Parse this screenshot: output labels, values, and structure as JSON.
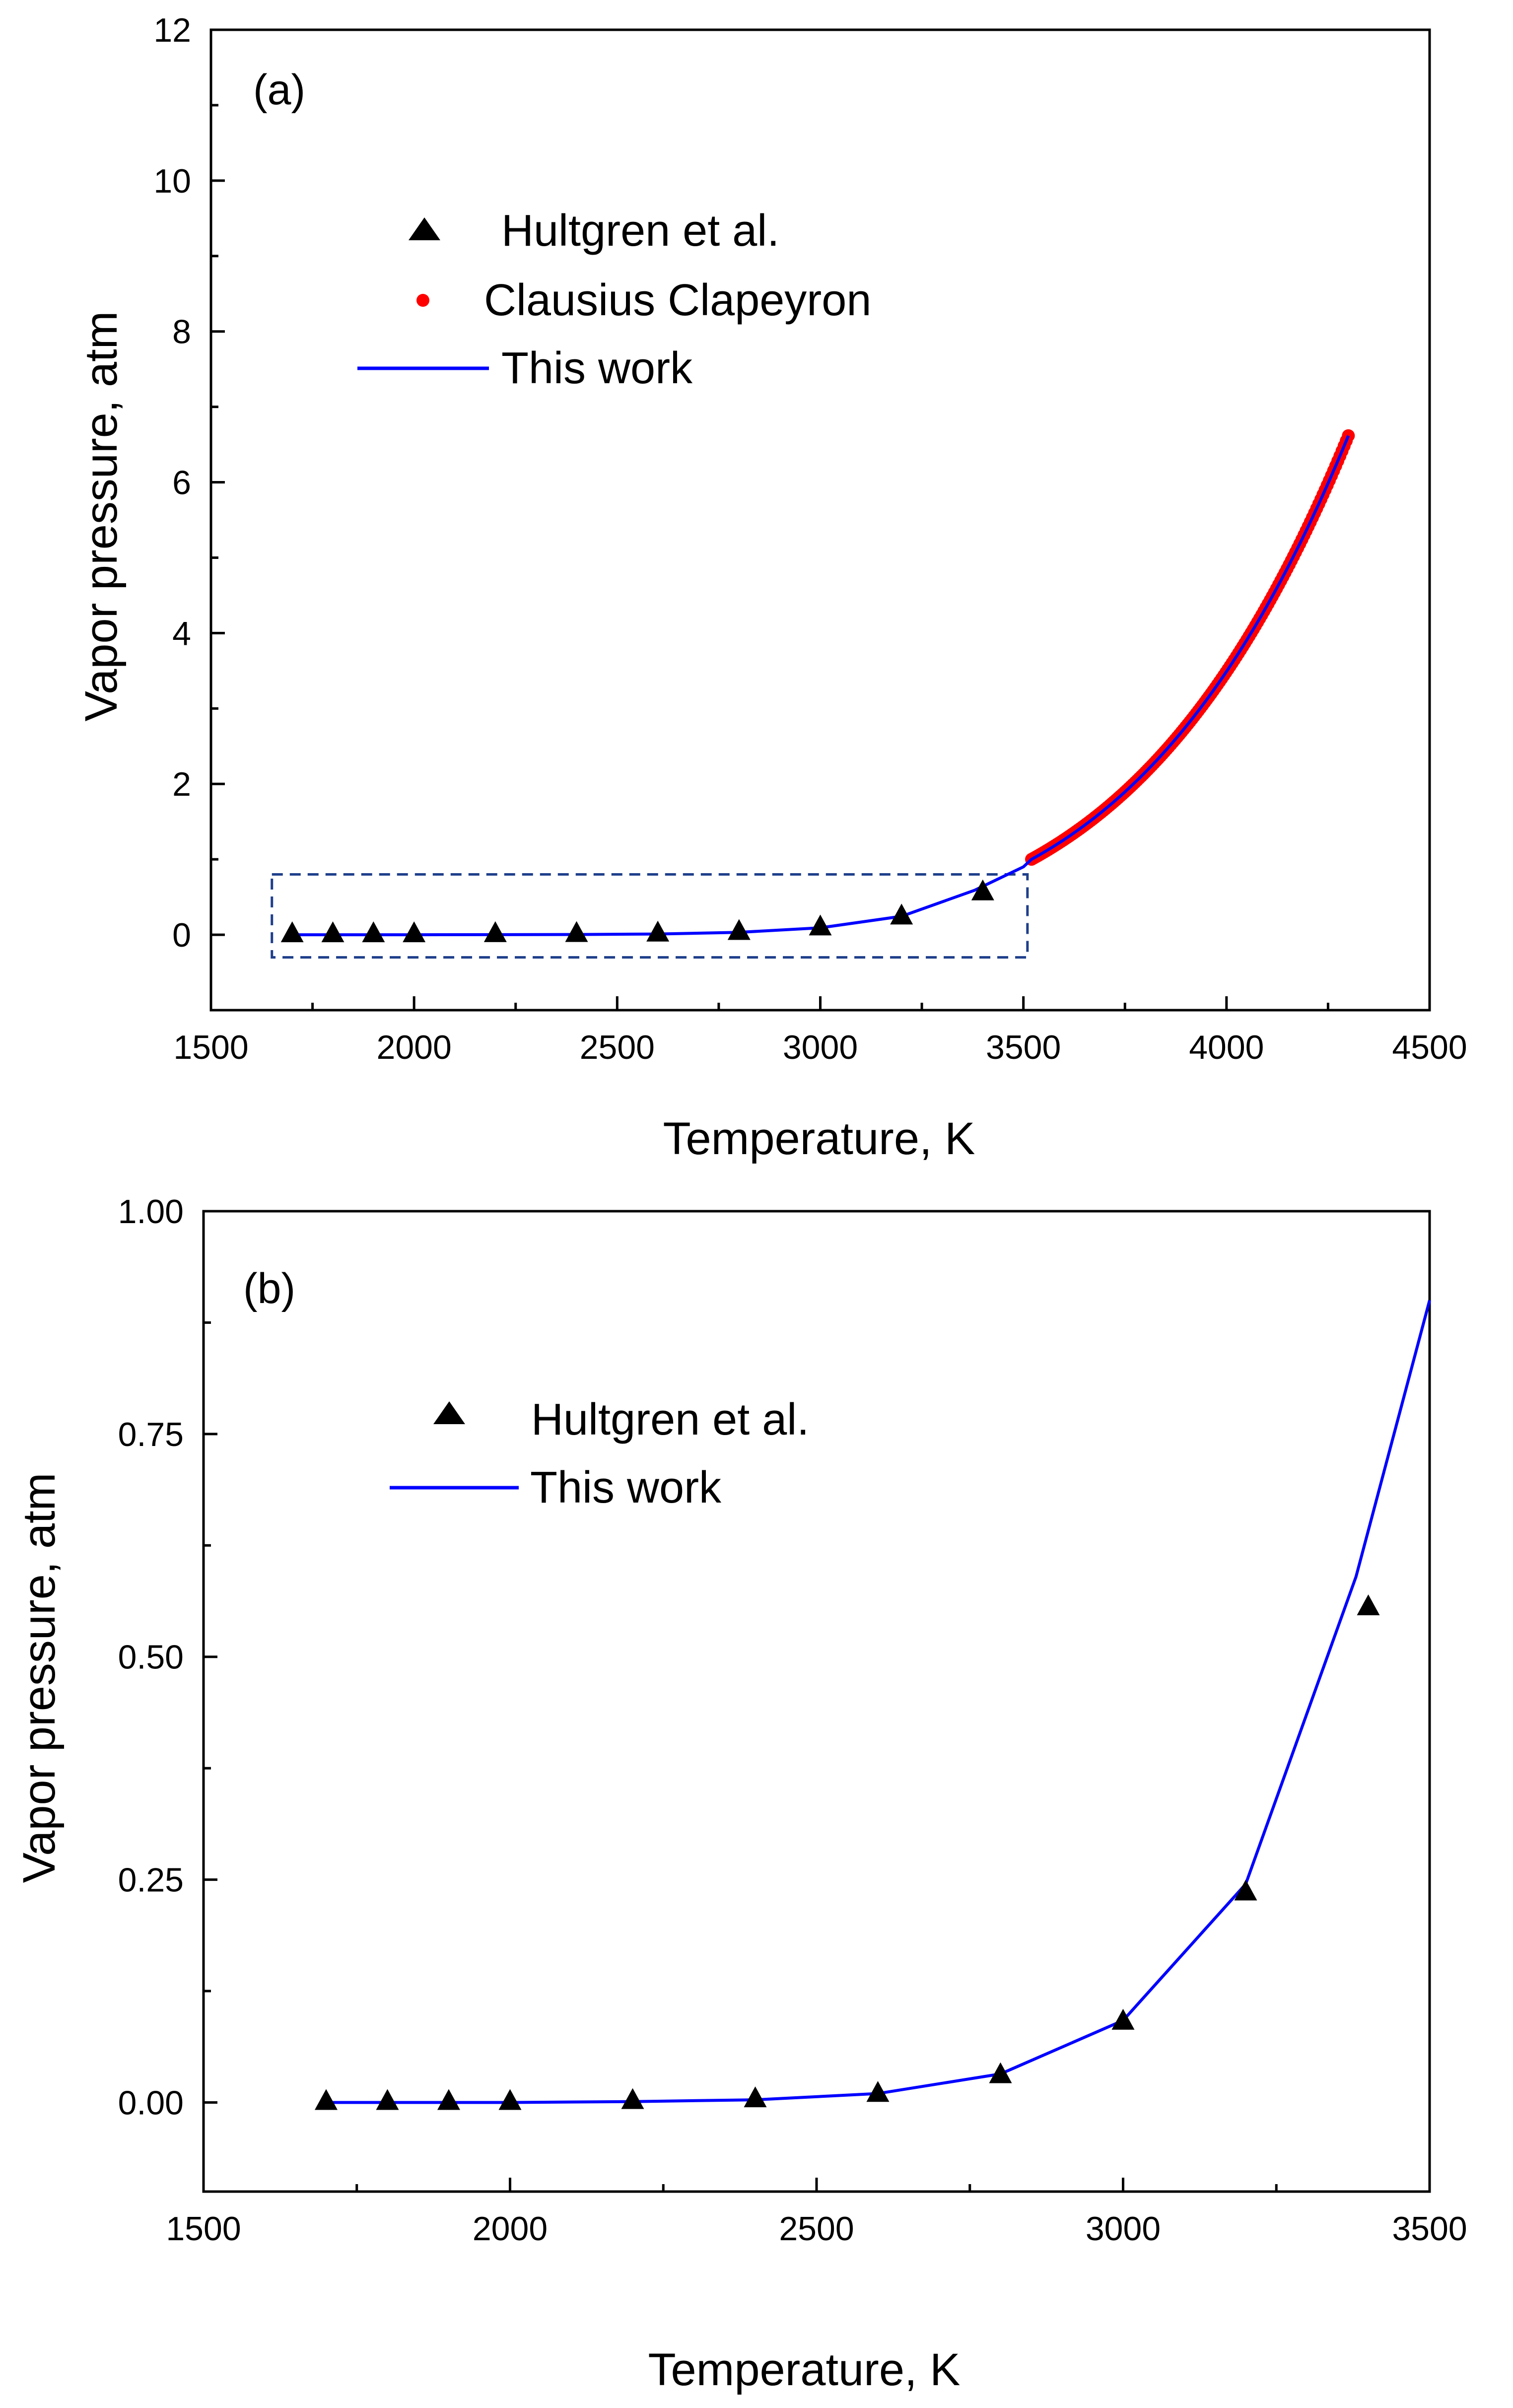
{
  "colors": {
    "hultgren": "#000000",
    "clausius": "#ff0000",
    "this_work": "#0000ff",
    "zoom_box": "#1f3f8a"
  },
  "chart_data": [
    {
      "type": "scatter",
      "panel_label": "(a)",
      "xlabel": "Temperature, K",
      "ylabel": "Vapor pressure, atm",
      "xlim": [
        1500,
        4500
      ],
      "ylim": [
        -1,
        12
      ],
      "xticks": [
        1500,
        2000,
        2500,
        3000,
        3500,
        4000,
        4500
      ],
      "yticks": [
        0,
        2,
        4,
        6,
        8,
        10,
        12
      ],
      "xtick_labels": [
        "1500",
        "2000",
        "2500",
        "3000",
        "3500",
        "4000",
        "4500"
      ],
      "ytick_labels": [
        "0",
        "2",
        "4",
        "6",
        "8",
        "10",
        "12"
      ],
      "grid": false,
      "legend": {
        "position": "upper-left",
        "labels": [
          "Hultgren et al.",
          "Clausius Clapeyron",
          "This work"
        ]
      },
      "zoom_region": {
        "x": [
          1650,
          3510
        ],
        "y": [
          -0.3,
          0.8
        ]
      },
      "series": [
        {
          "name": "Hultgren et al.",
          "marker": "triangle",
          "x": [
            1700,
            1800,
            1900,
            2000,
            2200,
            2400,
            2600,
            2800,
            3000,
            3200,
            3400
          ],
          "y": [
            0.0,
            0.0,
            0.0,
            0.0,
            0.001,
            0.003,
            0.009,
            0.03,
            0.09,
            0.235,
            0.555
          ]
        },
        {
          "name": "Clausius Clapeyron",
          "marker": "circle",
          "x_range": [
            3520,
            4300
          ],
          "model": {
            "p_ref": 1.0,
            "t_ref": 3520,
            "b": 36670
          }
        },
        {
          "name": "This work",
          "style": "line",
          "x": [
            1700,
            1800,
            1900,
            2000,
            2200,
            2400,
            2600,
            2800,
            3000,
            3200,
            3380,
            3500
          ],
          "y": [
            0.0,
            0.0,
            0.0,
            0.0,
            0.001,
            0.003,
            0.01,
            0.032,
            0.092,
            0.245,
            0.59,
            0.9
          ],
          "continues_with": "Clausius Clapeyron"
        }
      ]
    },
    {
      "type": "scatter",
      "panel_label": "(b)",
      "xlabel": "Temperature, K",
      "ylabel": "Vapor pressure, atm",
      "xlim": [
        1500,
        3500
      ],
      "ylim": [
        -0.1,
        1.0
      ],
      "xticks": [
        1500,
        2000,
        2500,
        3000,
        3500
      ],
      "yticks": [
        0.0,
        0.25,
        0.5,
        0.75,
        1.0
      ],
      "xtick_labels": [
        "1500",
        "2000",
        "2500",
        "3000",
        "3500"
      ],
      "ytick_labels": [
        "0.00",
        "0.25",
        "0.50",
        "0.75",
        "1.00"
      ],
      "grid": false,
      "legend": {
        "position": "upper-left",
        "labels": [
          "Hultgren et al.",
          "This work"
        ]
      },
      "series": [
        {
          "name": "Hultgren et al.",
          "marker": "triangle",
          "x": [
            1700,
            1800,
            1900,
            2000,
            2200,
            2400,
            2600,
            2800,
            3000,
            3200,
            3400
          ],
          "y": [
            0.0,
            0.0,
            0.0,
            0.0,
            0.001,
            0.003,
            0.009,
            0.03,
            0.09,
            0.235,
            0.555
          ]
        },
        {
          "name": "This work",
          "style": "line",
          "x": [
            1700,
            1800,
            1900,
            2000,
            2200,
            2400,
            2600,
            2800,
            3000,
            3200,
            3380,
            3500
          ],
          "y": [
            0.0,
            0.0,
            0.0,
            0.0,
            0.001,
            0.003,
            0.01,
            0.032,
            0.092,
            0.245,
            0.59,
            0.9
          ]
        }
      ]
    }
  ]
}
